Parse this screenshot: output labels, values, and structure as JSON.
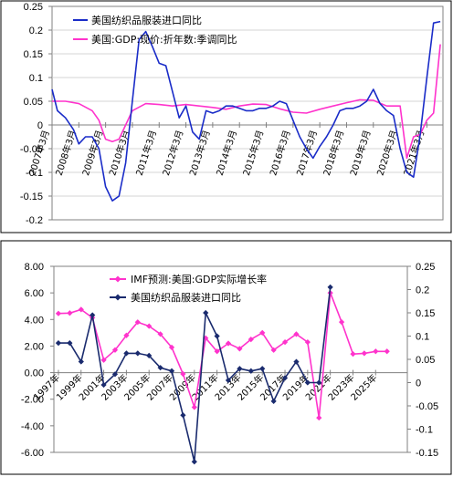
{
  "chart_data": [
    {
      "type": "line",
      "ylim": [
        -0.2,
        0.25
      ],
      "yticks": [
        "0.25",
        "0.2",
        "0.15",
        "0.1",
        "0.05",
        "0",
        "-0.05",
        "-0.1",
        "-0.15",
        "-0.2"
      ],
      "xtick_labels": [
        "2007年3月",
        "2008年3月",
        "2009年3月",
        "2010年3月",
        "2011年3月",
        "2012年3月",
        "2013年3月",
        "2014年3月",
        "2015年3月",
        "2016年3月",
        "2017年3月",
        "2018年3月",
        "2019年3月",
        "2020年3月",
        "2021年3月"
      ],
      "x_start": 2007,
      "grid": true,
      "legend_position": "top-left",
      "series": [
        {
          "name": "美国纺织品服装进口同比",
          "color": "#1a2cc8",
          "x": [
            2007.0,
            2007.2,
            2007.5,
            2007.8,
            2008.0,
            2008.25,
            2008.5,
            2008.75,
            2009.0,
            2009.25,
            2009.5,
            2009.75,
            2010.0,
            2010.25,
            2010.5,
            2010.75,
            2011.0,
            2011.25,
            2011.5,
            2011.75,
            2012.0,
            2012.25,
            2012.5,
            2012.75,
            2013.0,
            2013.25,
            2013.5,
            2013.75,
            2014.0,
            2014.25,
            2014.5,
            2014.75,
            2015.0,
            2015.25,
            2015.5,
            2015.75,
            2016.0,
            2016.25,
            2016.5,
            2016.75,
            2017.0,
            2017.25,
            2017.5,
            2017.75,
            2018.0,
            2018.25,
            2018.5,
            2018.75,
            2019.0,
            2019.25,
            2019.5,
            2019.75,
            2020.0,
            2020.25,
            2020.5,
            2020.75,
            2021.0,
            2021.25,
            2021.5
          ],
          "values": [
            0.075,
            0.03,
            0.015,
            -0.01,
            -0.04,
            -0.025,
            -0.025,
            -0.05,
            -0.13,
            -0.16,
            -0.15,
            -0.08,
            0.05,
            0.18,
            0.197,
            0.165,
            0.13,
            0.125,
            0.07,
            0.015,
            0.04,
            -0.015,
            -0.03,
            0.03,
            0.025,
            0.03,
            0.04,
            0.04,
            0.035,
            0.03,
            0.03,
            0.035,
            0.035,
            0.04,
            0.05,
            0.045,
            0.01,
            -0.025,
            -0.05,
            -0.07,
            -0.045,
            -0.025,
            0.0,
            0.03,
            0.035,
            0.035,
            0.04,
            0.05,
            0.075,
            0.045,
            0.03,
            0.02,
            -0.05,
            -0.1,
            -0.11,
            -0.02,
            0.1,
            0.215,
            0.218
          ]
        },
        {
          "name": "美国:GDP:现价:折年数:季调同比",
          "color": "#ff33cc",
          "x": [
            2007.0,
            2007.5,
            2008.0,
            2008.5,
            2008.75,
            2009.0,
            2009.25,
            2009.5,
            2009.75,
            2010.0,
            2010.5,
            2011.0,
            2011.5,
            2012.0,
            2012.5,
            2013.0,
            2013.5,
            2014.0,
            2014.5,
            2015.0,
            2015.5,
            2016.0,
            2016.5,
            2017.0,
            2017.5,
            2018.0,
            2018.5,
            2019.0,
            2019.5,
            2020.0,
            2020.25,
            2020.5,
            2020.75,
            2021.0,
            2021.25,
            2021.5
          ],
          "values": [
            0.05,
            0.05,
            0.045,
            0.03,
            0.01,
            -0.03,
            -0.035,
            -0.03,
            0.0,
            0.03,
            0.045,
            0.043,
            0.04,
            0.043,
            0.04,
            0.037,
            0.033,
            0.04,
            0.044,
            0.043,
            0.034,
            0.027,
            0.025,
            0.033,
            0.04,
            0.047,
            0.053,
            0.052,
            0.04,
            0.04,
            -0.07,
            -0.025,
            -0.02,
            0.01,
            0.025,
            0.17
          ]
        }
      ]
    },
    {
      "type": "line",
      "ylim_left": [
        -6,
        8
      ],
      "ylim_right": [
        -0.15,
        0.25
      ],
      "yticks_left": [
        "8.00",
        "6.00",
        "4.00",
        "2.00",
        "0.00",
        "-2.00",
        "-4.00",
        "-6.00"
      ],
      "yticks_right": [
        "0.25",
        "0.2",
        "0.15",
        "0.1",
        "0.05",
        "0",
        "-0.05",
        "-0.1",
        "-0.15"
      ],
      "xtick_labels": [
        "1997年",
        "1999年",
        "2001年",
        "2003年",
        "2005年",
        "2007年",
        "2009年",
        "2011年",
        "2013年",
        "2015年",
        "2017年",
        "2019年",
        "2021年",
        "2023年",
        "2025年"
      ],
      "x_start": 1997,
      "grid": false,
      "legend_position": "top-right",
      "series": [
        {
          "name": "IMF预测:美国:GDP实际增长率",
          "color": "#ff33cc",
          "axis": "left",
          "x": [
            1997,
            1998,
            1999,
            2000,
            2001,
            2002,
            2003,
            2004,
            2005,
            2006,
            2007,
            2008,
            2009,
            2010,
            2011,
            2012,
            2013,
            2014,
            2015,
            2016,
            2017,
            2018,
            2019,
            2020,
            2021,
            2022,
            2023,
            2024,
            2025,
            2026
          ],
          "values": [
            4.45,
            4.48,
            4.75,
            4.13,
            0.95,
            1.7,
            2.8,
            3.8,
            3.5,
            2.9,
            1.9,
            -0.1,
            -2.6,
            2.6,
            1.6,
            2.2,
            1.8,
            2.5,
            3.0,
            1.7,
            2.3,
            2.9,
            2.3,
            -3.4,
            6.0,
            3.8,
            1.4,
            1.45,
            1.6,
            1.6
          ]
        },
        {
          "name": "美国纺织品服装进口同比",
          "color": "#1a2b6e",
          "axis": "right",
          "x": [
            1997,
            1998,
            1999,
            2000,
            2001,
            2002,
            2003,
            2004,
            2005,
            2006,
            2007,
            2008,
            2009,
            2010,
            2011,
            2012,
            2013,
            2014,
            2015,
            2016,
            2017,
            2018,
            2019,
            2020,
            2021
          ],
          "values": [
            0.085,
            0.085,
            0.045,
            0.145,
            -0.005,
            0.018,
            0.063,
            0.063,
            0.058,
            0.032,
            0.025,
            -0.07,
            -0.17,
            0.15,
            0.1,
            0.005,
            0.03,
            0.025,
            0.03,
            -0.04,
            0.01,
            0.045,
            0.0,
            0.0,
            0.205
          ]
        }
      ]
    }
  ]
}
